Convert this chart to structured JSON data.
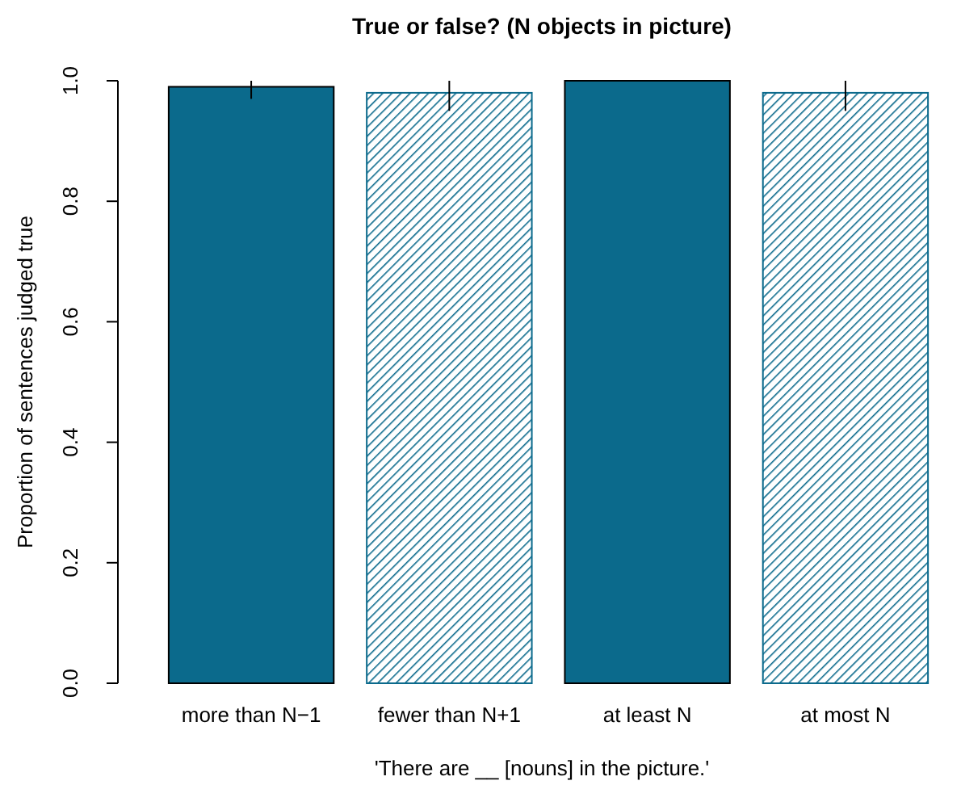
{
  "chart_data": {
    "type": "bar",
    "title": "True or false? (N objects in picture)",
    "xlabel": "'There are __ [nouns] in the picture.'",
    "ylabel": "Proportion of sentences judged true",
    "categories": [
      "more than N−1",
      "fewer than N+1",
      "at least N",
      "at most N"
    ],
    "series": [
      {
        "color": "#0b6a8c",
        "values": [
          0.99,
          null,
          1.0,
          null
        ],
        "errors": [
          [
            0.97,
            1.0
          ],
          null,
          null,
          null
        ]
      },
      {
        "color": "#0b6a8c",
        "values": [
          null,
          0.98,
          null,
          0.98
        ],
        "errors": [
          null,
          [
            0.95,
            1.0
          ],
          null,
          [
            0.95,
            1.0
          ]
        ]
      }
    ],
    "ylim": [
      0,
      1
    ],
    "yticks": [
      {
        "value": 0,
        "label": "0.0"
      },
      {
        "value": 0.2,
        "label": "0.2"
      },
      {
        "value": 0.4,
        "label": "0.4"
      },
      {
        "value": 0.6,
        "label": "0.6"
      },
      {
        "value": 0.8,
        "label": "0.8"
      },
      {
        "value": 1,
        "label": "1.0"
      }
    ],
    "grid": false
  }
}
